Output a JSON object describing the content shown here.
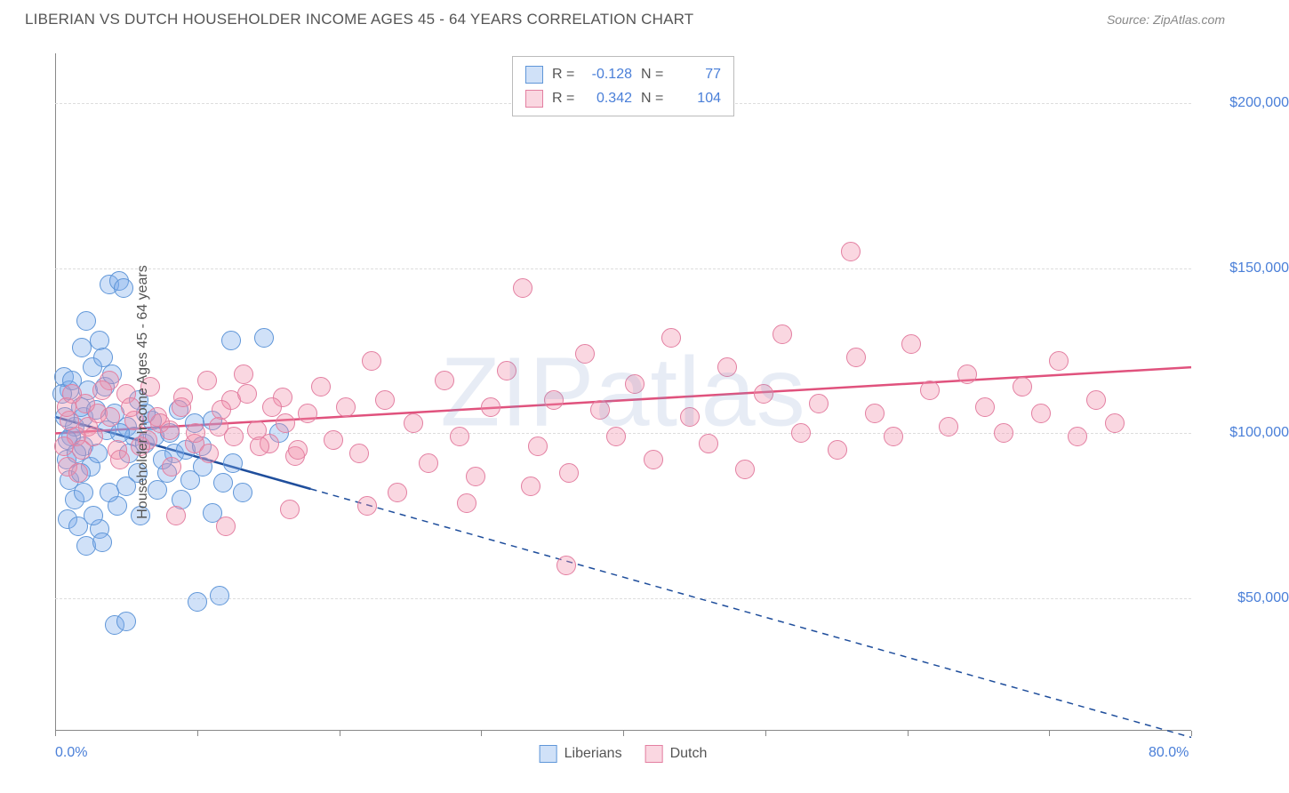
{
  "header": {
    "title": "LIBERIAN VS DUTCH HOUSEHOLDER INCOME AGES 45 - 64 YEARS CORRELATION CHART",
    "source": "Source: ZipAtlas.com"
  },
  "watermark": "ZIPatlas",
  "chart": {
    "type": "scatter",
    "background_color": "#ffffff",
    "grid_color": "#dddddd",
    "axis_color": "#888888",
    "y_axis_title": "Householder Income Ages 45 - 64 years",
    "xlim": [
      0,
      80
    ],
    "ylim": [
      10000,
      215000
    ],
    "x_tick_positions": [
      0,
      10,
      20,
      30,
      40,
      50,
      60,
      70,
      80
    ],
    "x_tick_labels": {
      "0": "0.0%",
      "80": "80.0%"
    },
    "y_grid_positions": [
      50000,
      100000,
      150000,
      200000
    ],
    "y_tick_labels": {
      "50000": "$50,000",
      "100000": "$100,000",
      "150000": "$150,000",
      "200000": "$200,000"
    },
    "label_fontsize": 16,
    "label_color": "#4a7fd8",
    "title_color": "#555555",
    "marker_radius": 11,
    "marker_stroke_width": 1.5,
    "series": [
      {
        "name": "Liberians",
        "fill_color": "rgba(120,170,235,0.35)",
        "stroke_color": "#5f96d8",
        "trend_color": "#1f4e9c",
        "trend_width": 2.5,
        "trend_solid_xmax": 18,
        "R": "-0.128",
        "N": "77",
        "points": [
          [
            2.0,
            105000
          ],
          [
            1.1,
            99000
          ],
          [
            1.4,
            102000
          ],
          [
            0.8,
            92000
          ],
          [
            1.8,
            108000
          ],
          [
            1.0,
            113000
          ],
          [
            2.6,
            120000
          ],
          [
            0.6,
            117000
          ],
          [
            2.2,
            134000
          ],
          [
            3.1,
            128000
          ],
          [
            3.8,
            145000
          ],
          [
            4.5,
            146000
          ],
          [
            4.8,
            144000
          ],
          [
            3.4,
            123000
          ],
          [
            1.9,
            126000
          ],
          [
            2.0,
            96000
          ],
          [
            2.5,
            90000
          ],
          [
            3.0,
            94000
          ],
          [
            3.6,
            101000
          ],
          [
            4.2,
            106000
          ],
          [
            5.1,
            102000
          ],
          [
            5.6,
            99000
          ],
          [
            6.3,
            97000
          ],
          [
            6.8,
            104000
          ],
          [
            5.8,
            88000
          ],
          [
            5.0,
            84000
          ],
          [
            4.4,
            78000
          ],
          [
            3.8,
            82000
          ],
          [
            3.1,
            71000
          ],
          [
            2.2,
            66000
          ],
          [
            6.0,
            75000
          ],
          [
            7.2,
            83000
          ],
          [
            7.9,
            88000
          ],
          [
            8.4,
            94000
          ],
          [
            8.9,
            80000
          ],
          [
            9.5,
            86000
          ],
          [
            10.4,
            90000
          ],
          [
            11.1,
            76000
          ],
          [
            11.8,
            85000
          ],
          [
            12.5,
            91000
          ],
          [
            13.2,
            82000
          ],
          [
            10.0,
            49000
          ],
          [
            11.6,
            51000
          ],
          [
            4.2,
            42000
          ],
          [
            5.0,
            43000
          ],
          [
            1.0,
            86000
          ],
          [
            1.4,
            80000
          ],
          [
            0.9,
            74000
          ],
          [
            1.6,
            72000
          ],
          [
            2.0,
            82000
          ],
          [
            2.7,
            75000
          ],
          [
            3.3,
            67000
          ],
          [
            0.7,
            105000
          ],
          [
            0.5,
            112000
          ],
          [
            0.9,
            98000
          ],
          [
            1.2,
            116000
          ],
          [
            1.5,
            94000
          ],
          [
            1.8,
            88000
          ],
          [
            2.3,
            113000
          ],
          [
            2.9,
            107000
          ],
          [
            3.5,
            114000
          ],
          [
            4.0,
            118000
          ],
          [
            4.6,
            100000
          ],
          [
            5.2,
            94000
          ],
          [
            5.9,
            110000
          ],
          [
            6.4,
            106000
          ],
          [
            7.0,
            99000
          ],
          [
            7.6,
            92000
          ],
          [
            8.1,
            100000
          ],
          [
            8.7,
            107000
          ],
          [
            9.2,
            95000
          ],
          [
            9.8,
            103000
          ],
          [
            10.3,
            96000
          ],
          [
            11.1,
            104000
          ],
          [
            12.4,
            128000
          ],
          [
            14.7,
            129000
          ],
          [
            15.8,
            100000
          ]
        ],
        "trend": {
          "x1": 0,
          "y1": 105000,
          "x2": 80,
          "y2": 8000
        }
      },
      {
        "name": "Dutch",
        "fill_color": "rgba(240,140,170,0.35)",
        "stroke_color": "#e37fa1",
        "trend_color": "#e0527d",
        "trend_width": 2.5,
        "trend_solid_xmax": 80,
        "R": "0.342",
        "N": "104",
        "points": [
          [
            1.0,
            104000
          ],
          [
            1.5,
            99000
          ],
          [
            0.8,
            108000
          ],
          [
            1.9,
            95000
          ],
          [
            2.3,
            102000
          ],
          [
            3.0,
            106000
          ],
          [
            3.8,
            116000
          ],
          [
            4.4,
            95000
          ],
          [
            5.0,
            112000
          ],
          [
            5.6,
            104000
          ],
          [
            6.5,
            98000
          ],
          [
            7.2,
            105000
          ],
          [
            8.1,
            101000
          ],
          [
            8.9,
            108000
          ],
          [
            9.8,
            97000
          ],
          [
            10.7,
            116000
          ],
          [
            11.5,
            102000
          ],
          [
            12.4,
            110000
          ],
          [
            13.3,
            118000
          ],
          [
            14.2,
            101000
          ],
          [
            15.1,
            97000
          ],
          [
            16.0,
            111000
          ],
          [
            16.9,
            93000
          ],
          [
            17.8,
            106000
          ],
          [
            18.7,
            114000
          ],
          [
            19.6,
            98000
          ],
          [
            20.5,
            108000
          ],
          [
            21.4,
            94000
          ],
          [
            22.3,
            122000
          ],
          [
            23.2,
            110000
          ],
          [
            24.1,
            82000
          ],
          [
            25.2,
            103000
          ],
          [
            26.3,
            91000
          ],
          [
            27.4,
            116000
          ],
          [
            28.5,
            99000
          ],
          [
            29.6,
            87000
          ],
          [
            30.7,
            108000
          ],
          [
            31.8,
            119000
          ],
          [
            32.9,
            144000
          ],
          [
            34.0,
            96000
          ],
          [
            35.1,
            110000
          ],
          [
            36.2,
            88000
          ],
          [
            37.3,
            124000
          ],
          [
            38.4,
            107000
          ],
          [
            39.5,
            99000
          ],
          [
            40.8,
            115000
          ],
          [
            42.1,
            92000
          ],
          [
            43.4,
            129000
          ],
          [
            44.7,
            105000
          ],
          [
            46.0,
            97000
          ],
          [
            47.3,
            120000
          ],
          [
            48.6,
            89000
          ],
          [
            49.9,
            112000
          ],
          [
            51.2,
            130000
          ],
          [
            52.5,
            100000
          ],
          [
            53.8,
            109000
          ],
          [
            55.1,
            95000
          ],
          [
            56.4,
            123000
          ],
          [
            57.7,
            106000
          ],
          [
            59.0,
            99000
          ],
          [
            60.3,
            127000
          ],
          [
            61.6,
            113000
          ],
          [
            62.9,
            102000
          ],
          [
            64.2,
            118000
          ],
          [
            65.5,
            108000
          ],
          [
            66.8,
            100000
          ],
          [
            68.1,
            114000
          ],
          [
            69.4,
            106000
          ],
          [
            70.7,
            122000
          ],
          [
            72.0,
            99000
          ],
          [
            73.3,
            110000
          ],
          [
            74.6,
            103000
          ],
          [
            56.0,
            155000
          ],
          [
            36.0,
            60000
          ],
          [
            33.5,
            84000
          ],
          [
            29.0,
            79000
          ],
          [
            22.0,
            78000
          ],
          [
            16.5,
            77000
          ],
          [
            12.0,
            72000
          ],
          [
            8.5,
            75000
          ],
          [
            0.6,
            96000
          ],
          [
            1.2,
            112000
          ],
          [
            0.9,
            90000
          ],
          [
            1.6,
            88000
          ],
          [
            2.1,
            109000
          ],
          [
            2.7,
            99000
          ],
          [
            3.3,
            113000
          ],
          [
            3.9,
            105000
          ],
          [
            4.6,
            92000
          ],
          [
            5.3,
            108000
          ],
          [
            6.0,
            96000
          ],
          [
            6.7,
            114000
          ],
          [
            7.4,
            103000
          ],
          [
            8.2,
            90000
          ],
          [
            9.0,
            111000
          ],
          [
            9.9,
            100000
          ],
          [
            10.8,
            94000
          ],
          [
            11.7,
            107000
          ],
          [
            12.6,
            99000
          ],
          [
            13.5,
            112000
          ],
          [
            14.4,
            96000
          ],
          [
            15.3,
            108000
          ],
          [
            16.2,
            103000
          ],
          [
            17.1,
            95000
          ]
        ],
        "trend": {
          "x1": 0,
          "y1": 100000,
          "x2": 80,
          "y2": 120000
        }
      }
    ],
    "legend": {
      "items": [
        "Liberians",
        "Dutch"
      ]
    }
  }
}
